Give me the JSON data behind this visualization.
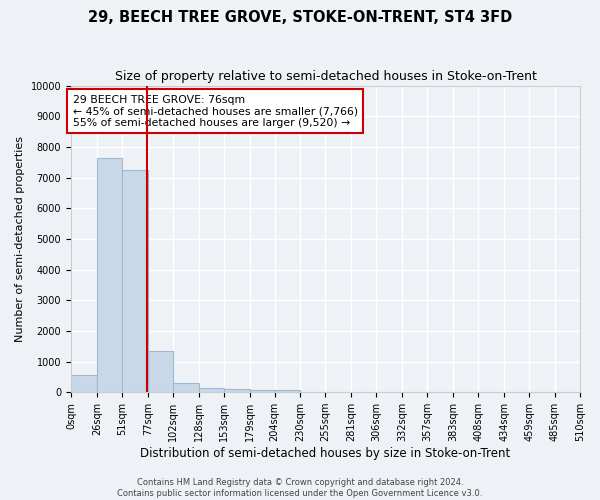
{
  "title": "29, BEECH TREE GROVE, STOKE-ON-TRENT, ST4 3FD",
  "subtitle": "Size of property relative to semi-detached houses in Stoke-on-Trent",
  "xlabel": "Distribution of semi-detached houses by size in Stoke-on-Trent",
  "ylabel": "Number of semi-detached properties",
  "bin_edges": [
    0,
    26,
    51,
    77,
    102,
    128,
    153,
    179,
    204,
    230,
    255,
    281,
    306,
    332,
    357,
    383,
    408,
    434,
    459,
    485,
    510
  ],
  "bar_heights": [
    550,
    7650,
    7250,
    1350,
    300,
    150,
    100,
    85,
    65,
    0,
    0,
    0,
    0,
    0,
    0,
    0,
    0,
    0,
    0,
    0
  ],
  "bar_color": "#c8d8e8",
  "bar_edgecolor": "#a0b8d0",
  "property_size": 76,
  "redline_color": "#cc0000",
  "ylim": [
    0,
    10000
  ],
  "yticks": [
    0,
    1000,
    2000,
    3000,
    4000,
    5000,
    6000,
    7000,
    8000,
    9000,
    10000
  ],
  "annotation_text": "29 BEECH TREE GROVE: 76sqm\n← 45% of semi-detached houses are smaller (7,766)\n55% of semi-detached houses are larger (9,520) →",
  "annotation_box_color": "#ffffff",
  "annotation_box_edgecolor": "#cc0000",
  "footer_text": "Contains HM Land Registry data © Crown copyright and database right 2024.\nContains public sector information licensed under the Open Government Licence v3.0.",
  "background_color": "#eef2f7",
  "grid_color": "#ffffff",
  "title_fontsize": 10.5,
  "subtitle_fontsize": 9,
  "tick_label_fontsize": 7,
  "ylabel_fontsize": 8,
  "xlabel_fontsize": 8.5,
  "annotation_fontsize": 7.8,
  "footer_fontsize": 6
}
